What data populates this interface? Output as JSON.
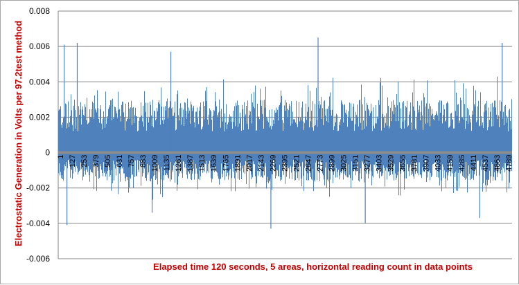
{
  "chart_data": {
    "type": "bar",
    "title": "",
    "xlabel": "Elapsed time 120 seconds, 5 areas, horizontal reading count in data points",
    "ylabel": "Electrostatic Generation in Volts per 97.2test method",
    "ylim": [
      -0.006,
      0.008
    ],
    "y_ticks": [
      "-0.006",
      "-0.004",
      "-0.002",
      "0",
      "0.002",
      "0.004",
      "0.006",
      "0.008"
    ],
    "x_tick_labels": [
      "1",
      "127",
      "253",
      "379",
      "505",
      "631",
      "757",
      "883",
      "1009",
      "1135",
      "1261",
      "1387",
      "1513",
      "1639",
      "1765",
      "1891",
      "2017",
      "2143",
      "2269",
      "2395",
      "2521",
      "2647",
      "2773",
      "2899",
      "3025",
      "3151",
      "3277",
      "3403",
      "3529",
      "3655",
      "3781",
      "3907",
      "4033",
      "4159",
      "4285",
      "4411",
      "4537",
      "4663",
      "4789"
    ],
    "x_range": [
      1,
      4850
    ],
    "series": [
      {
        "color": "#4f81bd",
        "values_description": "dense noise; typical positive 0.001–0.0035, typical negative -0.0005 to -0.003",
        "peaks": [
          {
            "x": 60,
            "y": 0.0061
          },
          {
            "x": 200,
            "y": 0.0062
          },
          {
            "x": 1200,
            "y": 0.0057
          },
          {
            "x": 2773,
            "y": 0.0065
          },
          {
            "x": 4740,
            "y": 0.0062
          }
        ],
        "troughs": [
          {
            "x": 90,
            "y": -0.0041
          },
          {
            "x": 1000,
            "y": -0.0034
          },
          {
            "x": 2269,
            "y": -0.0043
          },
          {
            "x": 3277,
            "y": -0.004
          },
          {
            "x": 4500,
            "y": -0.0037
          }
        ]
      }
    ],
    "grid": "horizontal",
    "legend": "none"
  }
}
